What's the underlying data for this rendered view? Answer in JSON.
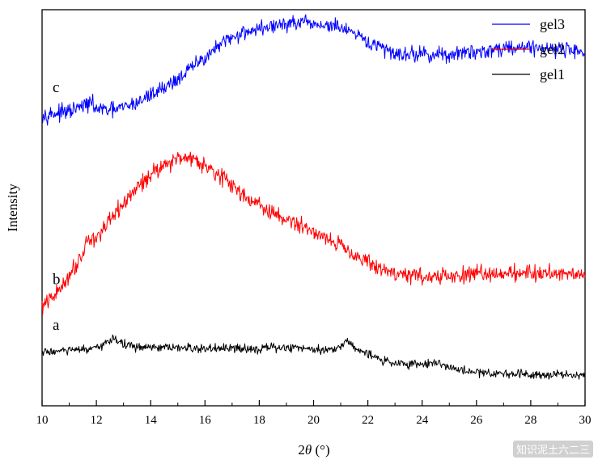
{
  "chart_data": {
    "type": "line",
    "xlabel_prefix": "2",
    "xlabel_symbol": "θ",
    "xlabel_unit": " (°)",
    "ylabel": "Intensity",
    "xlim": [
      10,
      30
    ],
    "ylim": [
      0,
      100
    ],
    "xticks": [
      "10",
      "12",
      "14",
      "16",
      "18",
      "20",
      "22",
      "24",
      "26",
      "28",
      "30"
    ],
    "x_tick_values": [
      10,
      12,
      14,
      16,
      18,
      20,
      22,
      24,
      26,
      28,
      30
    ],
    "y_ticks_shown": false,
    "legend_position": "top-right",
    "series": [
      {
        "name": "gel3",
        "curve_label": "c",
        "color": "#0000ff",
        "x": [
          10,
          11,
          11.8,
          12,
          12.5,
          13,
          13.5,
          14,
          14.5,
          15,
          15.5,
          16,
          16.5,
          17,
          17.5,
          18,
          18.5,
          19,
          19.5,
          20,
          20.5,
          21,
          21.5,
          22,
          22.5,
          23,
          23.5,
          24,
          24.5,
          25,
          25.5,
          26,
          26.5,
          27,
          27.5,
          28,
          28.5,
          29,
          29.5,
          30
        ],
        "y": [
          73.5,
          74.2,
          76.5,
          75.0,
          74.5,
          75.3,
          76.5,
          78.5,
          80.5,
          82.5,
          85.3,
          88.0,
          90.7,
          93.0,
          94.5,
          95.2,
          95.8,
          96.4,
          96.6,
          96.3,
          96.0,
          95.5,
          93.6,
          91.8,
          90.3,
          89.1,
          88.8,
          88.8,
          88.6,
          88.6,
          89.0,
          89.4,
          89.8,
          90.4,
          90.6,
          90.6,
          90.3,
          90.2,
          89.8,
          89.6
        ],
        "noise": 1.2
      },
      {
        "name": "gel2",
        "curve_label": "b",
        "color": "#ff0000",
        "x": [
          10,
          10.5,
          11,
          11.5,
          11.6,
          12,
          12.5,
          13,
          13.5,
          14,
          14.5,
          15,
          15.3,
          15.5,
          16,
          16.5,
          17,
          17.5,
          18,
          18.5,
          19,
          19.5,
          20,
          20.5,
          21,
          21.5,
          22,
          22.5,
          23,
          23.5,
          24,
          24.5,
          25,
          25.5,
          26,
          26.5,
          27,
          27.5,
          28,
          28.5,
          29,
          29.5,
          30
        ],
        "y": [
          25.0,
          28.0,
          33.0,
          38.5,
          41.5,
          42.5,
          46.5,
          51.0,
          55.0,
          58.5,
          61.0,
          62.3,
          63.2,
          62.5,
          61.0,
          58.5,
          55.5,
          53.0,
          50.5,
          48.5,
          47.0,
          45.5,
          44.0,
          42.5,
          40.5,
          38.5,
          36.0,
          34.5,
          33.5,
          33.0,
          32.8,
          32.5,
          32.5,
          33.0,
          33.2,
          33.5,
          33.5,
          33.6,
          33.6,
          33.5,
          33.5,
          33.5,
          33.5
        ],
        "noise": 1.3
      },
      {
        "name": "gel1",
        "curve_label": "a",
        "color": "#000000",
        "x": [
          10,
          11,
          12,
          12.4,
          12.6,
          13,
          13.5,
          14,
          15,
          16,
          17,
          18,
          19,
          20,
          20.5,
          21,
          21.2,
          21.5,
          22,
          22.5,
          23,
          23.5,
          24,
          24.5,
          25,
          25.5,
          26,
          26.5,
          27,
          28,
          29,
          30
        ],
        "y": [
          13.5,
          14.0,
          14.3,
          16.0,
          17.3,
          15.5,
          14.8,
          14.6,
          14.6,
          14.4,
          14.4,
          14.5,
          14.7,
          14.5,
          14.0,
          15.0,
          16.5,
          15.0,
          13.0,
          11.5,
          10.8,
          10.5,
          10.6,
          11.0,
          9.7,
          8.8,
          8.5,
          8.3,
          8.2,
          8.0,
          8.0,
          7.8
        ],
        "noise": 0.7
      }
    ]
  },
  "watermark": "知识泥土六二三"
}
